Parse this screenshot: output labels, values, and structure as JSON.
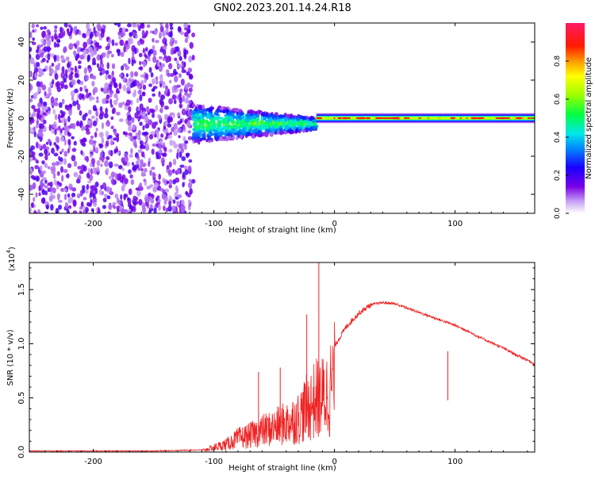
{
  "title": "GN02.2023.201.14.24.R18",
  "colorbar": {
    "label": "Normalized spectral amplitude",
    "ticks": [
      "0.0",
      "0.2",
      "0.4",
      "0.6",
      "0.8"
    ],
    "tick_values": [
      0.0,
      0.2,
      0.4,
      0.6,
      0.8
    ],
    "range": [
      0,
      1
    ]
  },
  "chart_data": [
    {
      "type": "heatmap",
      "title": "GN02.2023.201.14.24.R18",
      "xlabel": "Height of straight line (km)",
      "ylabel": "Frequency (Hz)",
      "xlim": [
        -253,
        166
      ],
      "ylim": [
        -50,
        50
      ],
      "xticks": [
        -200,
        -100,
        0,
        100
      ],
      "xtick_labels": [
        "-200",
        "-100",
        "0",
        "100"
      ],
      "yticks": [
        -40,
        -20,
        0,
        20,
        40
      ],
      "ytick_labels": [
        "-40",
        "-20",
        "0",
        "20",
        "40"
      ],
      "colormap": "rainbow",
      "regions": [
        {
          "name": "noise",
          "x": [
            -253,
            -117
          ],
          "y": [
            -50,
            50
          ],
          "amplitude": [
            0.05,
            0.2
          ]
        },
        {
          "name": "transition",
          "x": [
            -117,
            -15
          ],
          "y": [
            -12,
            8
          ],
          "amplitude": [
            0.2,
            0.6
          ]
        },
        {
          "name": "signal-line",
          "x": [
            -15,
            166
          ],
          "y": [
            -2,
            2
          ],
          "amplitude": [
            0.7,
            1.0
          ]
        }
      ]
    },
    {
      "type": "line",
      "xlabel": "Height of straight line (km)",
      "ylabel": "SNR (10 * v/v)",
      "y_multiplier": "(x10",
      "y_exponent": "4",
      "y_multiplier_close": ")",
      "xlim": [
        -253,
        166
      ],
      "ylim": [
        0,
        1.75
      ],
      "xticks": [
        -200,
        -100,
        0,
        100
      ],
      "xtick_labels": [
        "-200",
        "-100",
        "0",
        "100"
      ],
      "yticks": [
        0.0,
        0.5,
        1.0,
        1.5
      ],
      "ytick_labels": [
        "0.0",
        "0.5",
        "1.0",
        "1.5"
      ],
      "series": [
        {
          "name": "SNR",
          "color": "#ee2222",
          "x": [
            -253,
            -200,
            -150,
            -110,
            -100,
            -90,
            -80,
            -70,
            -60,
            -50,
            -40,
            -30,
            -25,
            -20,
            -15,
            -10,
            -5,
            0,
            10,
            20,
            30,
            40,
            50,
            60,
            70,
            80,
            90,
            100,
            110,
            120,
            130,
            140,
            150,
            160,
            166
          ],
          "y": [
            0.01,
            0.01,
            0.01,
            0.02,
            0.06,
            0.1,
            0.18,
            0.22,
            0.28,
            0.32,
            0.38,
            0.45,
            0.55,
            0.62,
            0.7,
            0.72,
            0.78,
            0.98,
            1.16,
            1.28,
            1.36,
            1.38,
            1.37,
            1.33,
            1.29,
            1.25,
            1.21,
            1.17,
            1.12,
            1.06,
            1.01,
            0.96,
            0.9,
            0.85,
            0.81
          ]
        }
      ],
      "spikes": [
        {
          "x": -13,
          "y": 1.75
        },
        {
          "x": -23,
          "y": 1.27
        },
        {
          "x": -45,
          "y": 0.78
        },
        {
          "x": -63,
          "y": 0.74
        },
        {
          "x": 94,
          "y": 0.93
        }
      ]
    }
  ]
}
